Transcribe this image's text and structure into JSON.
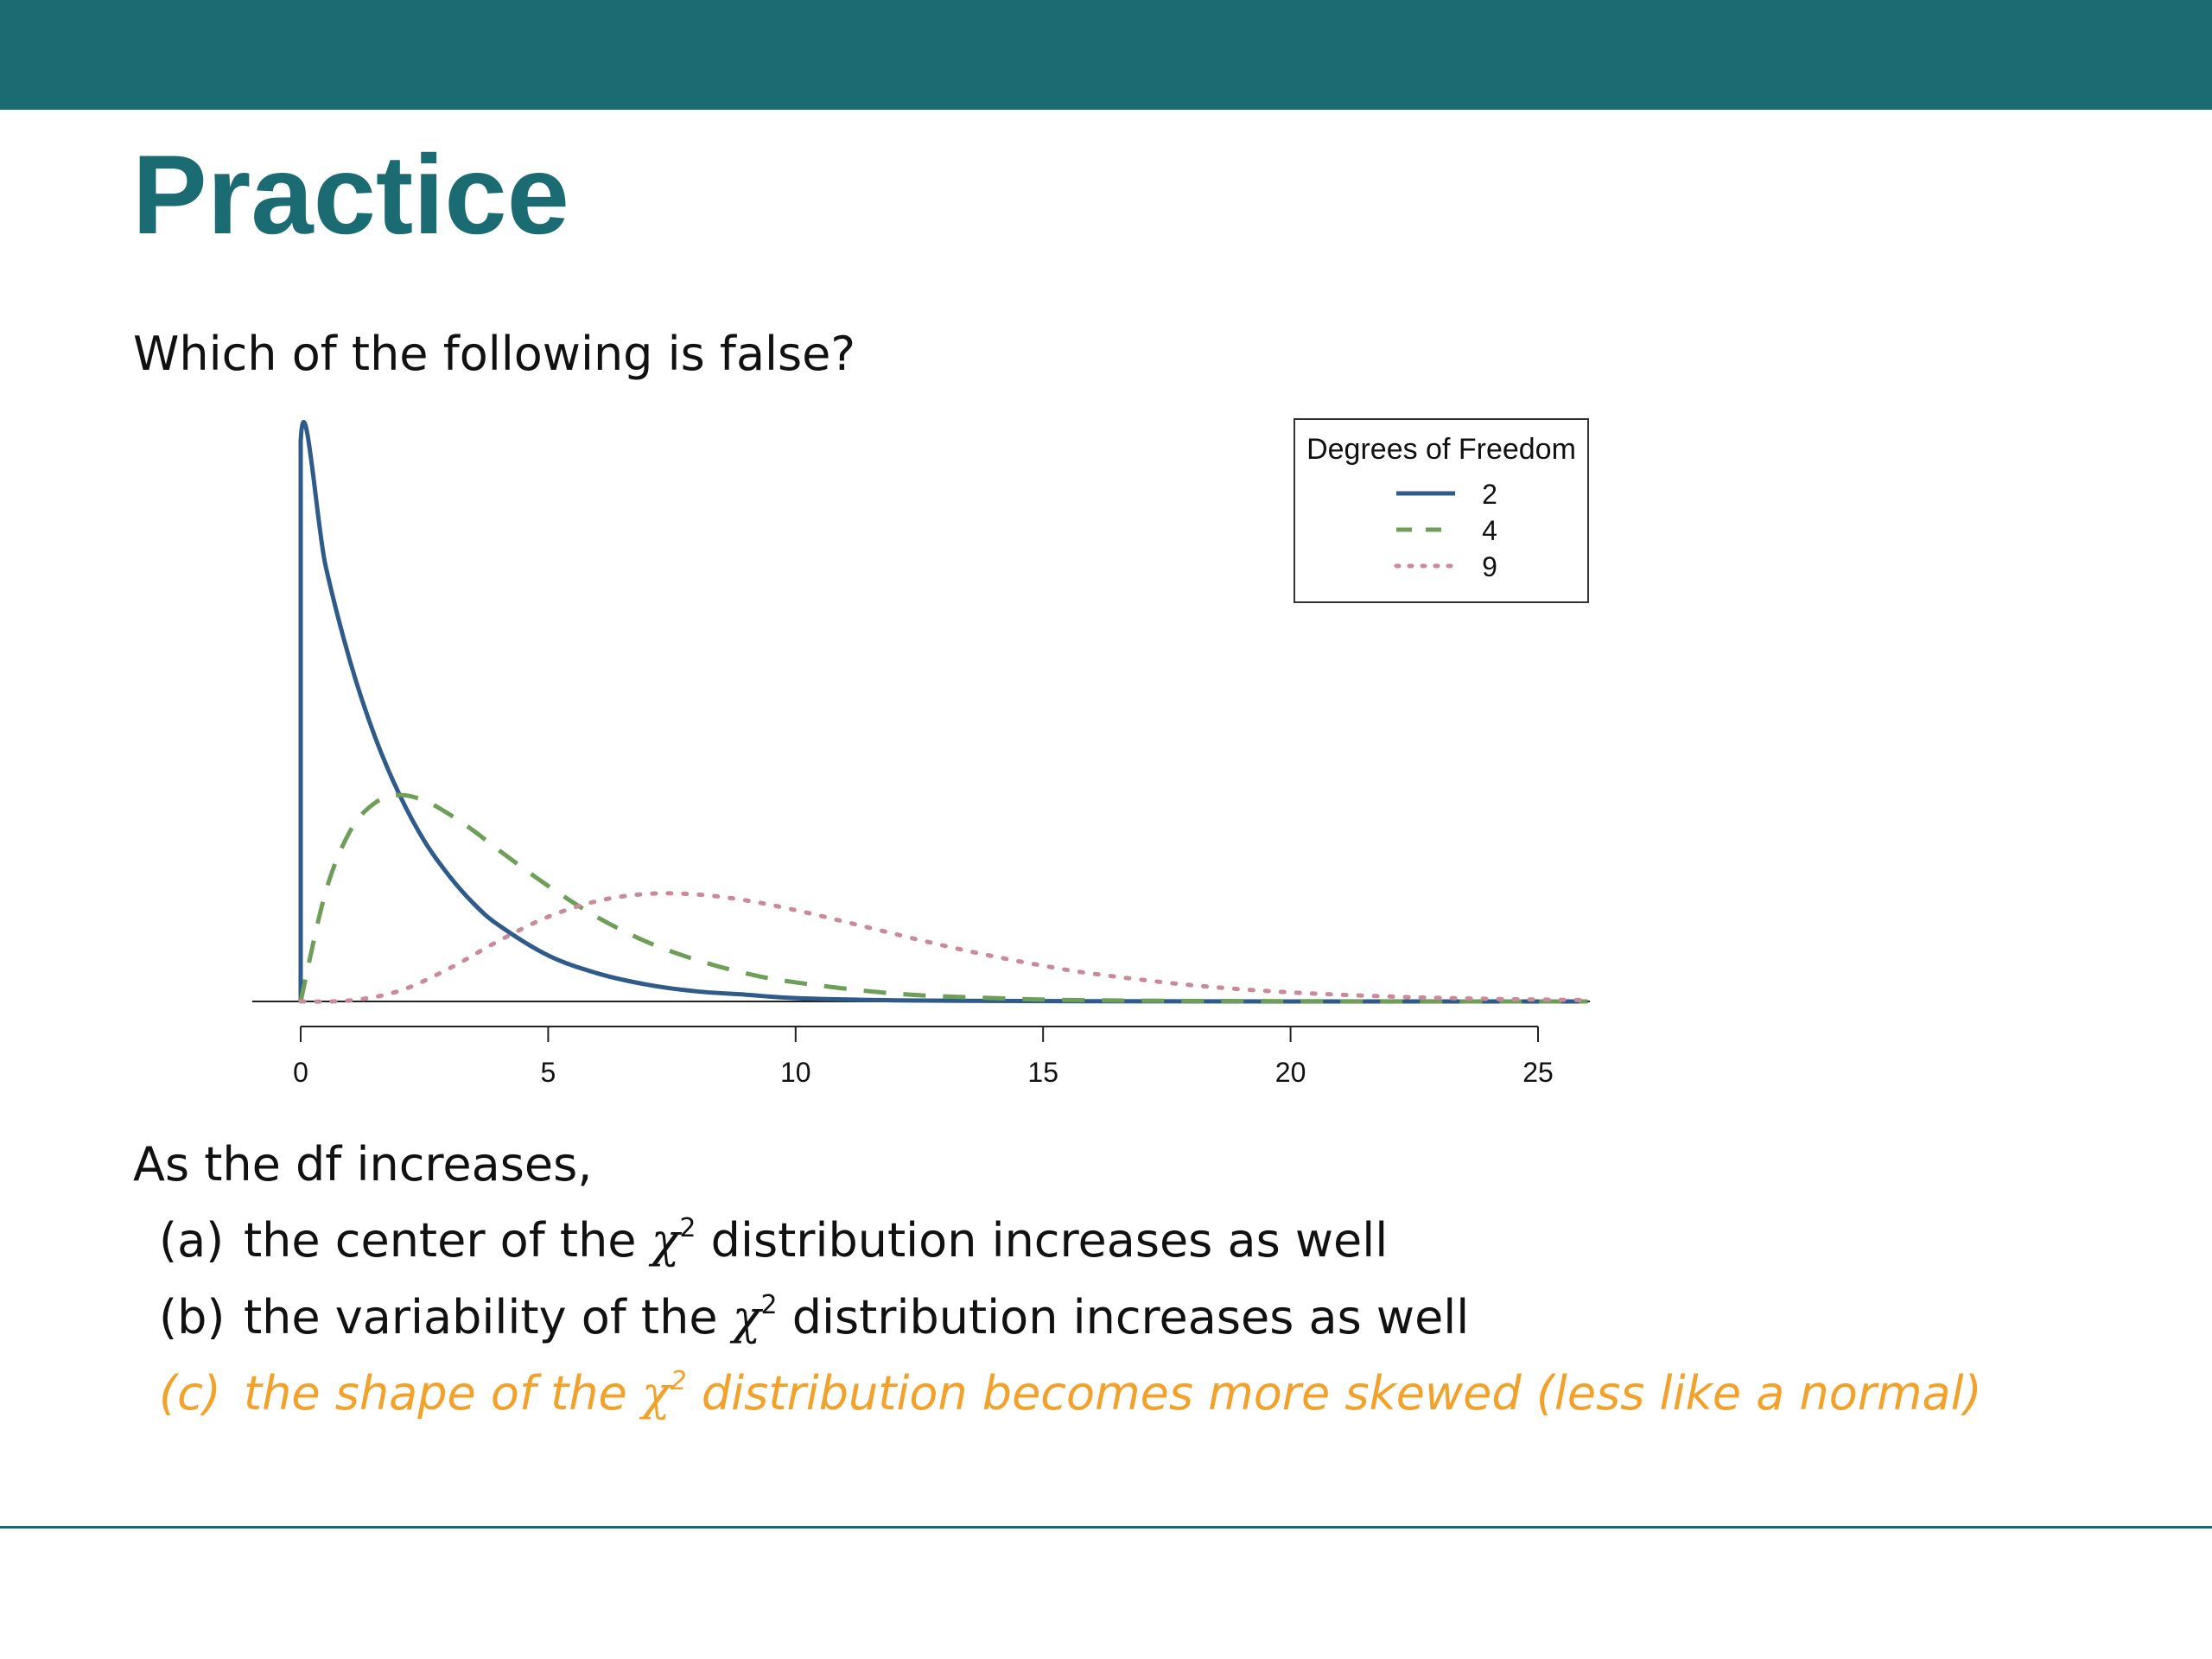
{
  "slide": {
    "title": "Practice",
    "question": "Which of the following is false?",
    "stem": "As the df increases,",
    "options": [
      {
        "letter": "(a)",
        "pre": "the center of the ",
        "sym": "χ",
        "sup": "2",
        "post": " distribution increases as well",
        "color": "#111111"
      },
      {
        "letter": "(b)",
        "pre": "the variability of the ",
        "sym": "χ",
        "sup": "2",
        "post": " distribution increases as well",
        "color": "#111111"
      },
      {
        "letter": "(c)",
        "pre": "the shape of the ",
        "sym": "χ",
        "sup": "2",
        "post": " distribution becomes more skewed (less like a normal)",
        "color": "#f2a22a"
      }
    ],
    "colors": {
      "brand": "#1b6b73",
      "highlight": "#f2a22a"
    }
  },
  "chart_data": {
    "type": "line",
    "title": "",
    "xlabel": "",
    "ylabel": "",
    "xlim": [
      -1,
      26
    ],
    "ylim": [
      0,
      0.5
    ],
    "xticks": [
      0,
      5,
      10,
      15,
      20,
      25
    ],
    "grid": false,
    "legend": {
      "title": "Degrees of Freedom",
      "placement": "top-right"
    },
    "series": [
      {
        "name": "2",
        "df": 2,
        "style": "solid",
        "color": "#2e5b8a",
        "x": [
          0,
          0.5,
          1,
          1.5,
          2,
          2.5,
          3,
          3.5,
          4,
          5,
          6,
          7,
          8,
          9,
          10,
          12,
          14,
          16,
          20,
          26
        ],
        "y": [
          0.5,
          0.389,
          0.303,
          0.236,
          0.184,
          0.143,
          0.112,
          0.087,
          0.068,
          0.041,
          0.025,
          0.015,
          0.009,
          0.006,
          0.003,
          0.001,
          0.0005,
          0.0002,
          0.0,
          0.0
        ]
      },
      {
        "name": "4",
        "df": 4,
        "style": "dashed",
        "color": "#6e9e58",
        "x": [
          0,
          0.5,
          1,
          1.5,
          2,
          2.5,
          3,
          3.5,
          4,
          5,
          6,
          7,
          8,
          9,
          10,
          12,
          14,
          16,
          20,
          26
        ],
        "y": [
          0,
          0.097,
          0.152,
          0.177,
          0.184,
          0.179,
          0.167,
          0.152,
          0.135,
          0.103,
          0.075,
          0.053,
          0.037,
          0.025,
          0.017,
          0.007,
          0.003,
          0.001,
          0.0002,
          0.0
        ]
      },
      {
        "name": "9",
        "df": 9,
        "style": "dotted",
        "color": "#c98a9a",
        "x": [
          0,
          1,
          2,
          3,
          4,
          5,
          6,
          7,
          8,
          9,
          10,
          11,
          12,
          13,
          14,
          15,
          16,
          18,
          20,
          22,
          24,
          26
        ],
        "y": [
          0,
          0.0009,
          0.0095,
          0.0294,
          0.054,
          0.0755,
          0.0896,
          0.0959,
          0.0954,
          0.0901,
          0.0814,
          0.071,
          0.0602,
          0.0497,
          0.0402,
          0.0319,
          0.0248,
          0.0145,
          0.0081,
          0.0044,
          0.0023,
          0.0012
        ]
      }
    ]
  }
}
